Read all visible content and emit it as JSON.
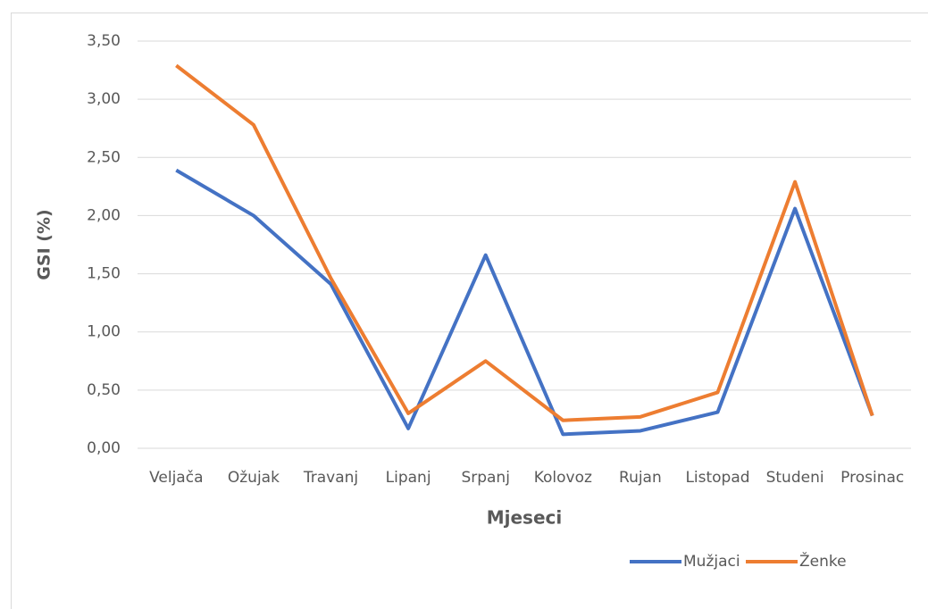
{
  "chart_data": {
    "type": "line",
    "categories": [
      "Veljača",
      "Ožujak",
      "Travanj",
      "Lipanj",
      "Srpanj",
      "Kolovoz",
      "Rujan",
      "Listopad",
      "Studeni",
      "Prosinac"
    ],
    "series": [
      {
        "name": "Mužjaci",
        "color": "#4472c4",
        "values": [
          2.39,
          2.0,
          1.41,
          0.17,
          1.66,
          0.12,
          0.15,
          0.31,
          2.06,
          0.28
        ]
      },
      {
        "name": "Ženke",
        "color": "#ed7d31",
        "values": [
          3.29,
          2.78,
          1.46,
          0.3,
          0.75,
          0.24,
          0.27,
          0.48,
          2.29,
          0.28
        ]
      }
    ],
    "ylim": [
      0,
      3.5
    ],
    "yticks": [
      {
        "value": 0,
        "label": "0,00"
      },
      {
        "value": 0.5,
        "label": "0,50"
      },
      {
        "value": 1,
        "label": "1,00"
      },
      {
        "value": 1.5,
        "label": "1,50"
      },
      {
        "value": 2,
        "label": "2,00"
      },
      {
        "value": 2.5,
        "label": "2,50"
      },
      {
        "value": 3,
        "label": "3,00"
      },
      {
        "value": 3.5,
        "label": "3,50"
      }
    ],
    "ylabel": "GSI (%)",
    "xlabel": "Mjeseci",
    "grid": true,
    "legend": "bottom-right"
  }
}
